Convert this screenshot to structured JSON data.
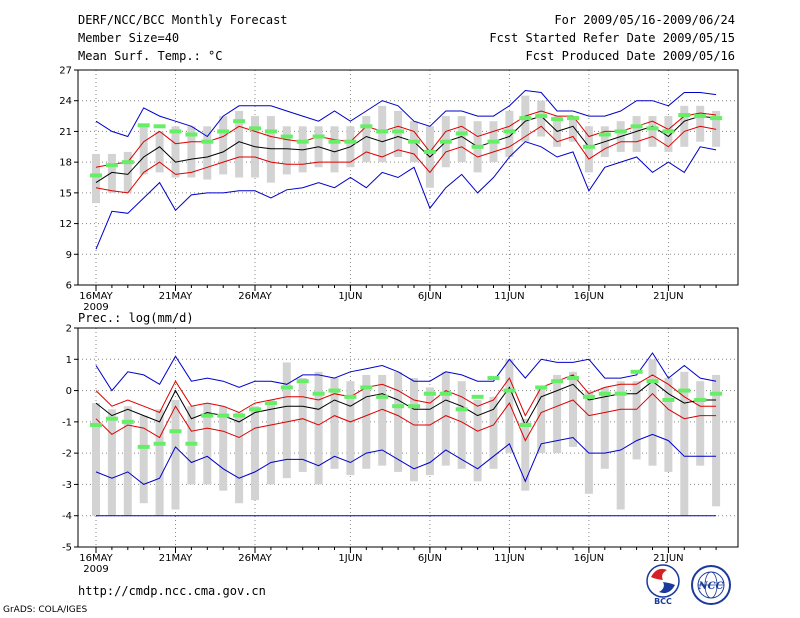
{
  "header": {
    "title": "DERF/NCC/BCC Monthly Forecast",
    "member_size": "Member Size=40",
    "variable": "Mean Surf. Temp.: °C",
    "period": "For 2009/05/16-2009/06/24",
    "started": "Fcst Started Refer Date 2009/05/15",
    "produced": "Fcst Produced Date 2009/05/16"
  },
  "footer": {
    "url": "http://cmdp.ncc.cma.gov.cn",
    "grads": "GrADS: COLA/IGES",
    "logo_bcc": "BCC",
    "logo_ncc": "NCC"
  },
  "colors": {
    "box": "#d3d3d3",
    "obs": "#66ee66",
    "mean": "#000000",
    "band": "#dd0000",
    "extreme": "#0000cc",
    "grid": "#888888"
  },
  "chart_data": [
    {
      "type": "line",
      "title": "Mean Surf. Temp.: °C",
      "ylim": [
        6,
        27
      ],
      "yticks": [
        6,
        9,
        12,
        15,
        18,
        21,
        24,
        27
      ],
      "xtick_labels": [
        "16MAY",
        "21MAY",
        "26MAY",
        "1JUN",
        "6JUN",
        "11JUN",
        "16JUN",
        "21JUN"
      ],
      "xtick_days": [
        1,
        6,
        11,
        17,
        22,
        27,
        32,
        37
      ],
      "year_label": "2009",
      "days": [
        1,
        2,
        3,
        4,
        5,
        6,
        7,
        8,
        9,
        10,
        11,
        12,
        13,
        14,
        15,
        16,
        17,
        18,
        19,
        20,
        21,
        22,
        23,
        24,
        25,
        26,
        27,
        28,
        29,
        30,
        31,
        32,
        33,
        34,
        35,
        36,
        37,
        38,
        39,
        40
      ],
      "series": [
        {
          "name": "max",
          "role": "extreme",
          "values": [
            22.0,
            21.0,
            20.5,
            23.3,
            22.5,
            22.0,
            21.5,
            20.5,
            22.5,
            23.5,
            23.5,
            23.5,
            23.0,
            22.5,
            22.0,
            23.0,
            22.0,
            23.0,
            24.0,
            23.5,
            22.0,
            21.5,
            23.0,
            23.0,
            22.5,
            22.5,
            23.5,
            25.0,
            24.8,
            23.0,
            23.0,
            22.5,
            22.5,
            23.0,
            24.0,
            24.0,
            23.5,
            24.8,
            24.8,
            24.6
          ]
        },
        {
          "name": "upper",
          "role": "band",
          "values": [
            17.5,
            17.8,
            18.0,
            20.0,
            21.0,
            19.8,
            20.0,
            20.0,
            20.5,
            21.5,
            21.0,
            20.5,
            20.2,
            20.0,
            20.5,
            20.2,
            20.0,
            21.5,
            21.0,
            21.5,
            21.0,
            19.0,
            21.0,
            21.5,
            20.5,
            21.0,
            21.5,
            22.5,
            23.0,
            22.5,
            22.5,
            20.5,
            21.0,
            21.0,
            21.5,
            22.0,
            21.2,
            22.5,
            22.8,
            22.6
          ]
        },
        {
          "name": "ensemble mean",
          "role": "mean",
          "values": [
            16.0,
            17.0,
            16.8,
            18.5,
            19.5,
            18.0,
            18.3,
            18.5,
            19.0,
            20.0,
            19.5,
            19.3,
            19.3,
            19.2,
            19.5,
            19.0,
            19.5,
            20.5,
            20.0,
            20.5,
            20.0,
            18.5,
            20.0,
            20.5,
            19.5,
            20.0,
            20.5,
            22.0,
            22.5,
            21.0,
            21.5,
            19.5,
            20.0,
            20.5,
            21.0,
            21.5,
            20.5,
            22.0,
            22.5,
            22.3
          ]
        },
        {
          "name": "lower",
          "role": "band",
          "values": [
            15.5,
            15.2,
            15.0,
            17.0,
            18.0,
            16.8,
            17.0,
            17.5,
            18.0,
            18.5,
            18.5,
            18.0,
            17.8,
            17.8,
            18.0,
            18.0,
            18.0,
            19.0,
            18.5,
            19.2,
            18.8,
            17.0,
            19.0,
            19.5,
            18.5,
            19.0,
            19.5,
            20.5,
            21.5,
            20.0,
            20.5,
            18.3,
            19.3,
            20.0,
            20.0,
            20.5,
            19.5,
            21.0,
            21.5,
            21.2
          ]
        },
        {
          "name": "min",
          "role": "extreme",
          "values": [
            9.5,
            13.2,
            13.0,
            14.5,
            16.0,
            13.3,
            14.8,
            15.0,
            15.0,
            15.2,
            15.2,
            14.5,
            15.3,
            15.5,
            16.0,
            15.5,
            16.5,
            15.5,
            17.0,
            16.5,
            17.5,
            13.5,
            15.5,
            16.8,
            15.0,
            16.5,
            18.5,
            20.0,
            19.5,
            18.5,
            19.0,
            15.2,
            17.5,
            18.0,
            18.5,
            17.0,
            18.0,
            17.0,
            19.5,
            19.2
          ]
        },
        {
          "name": "observation",
          "role": "obs",
          "values": [
            16.7,
            17.7,
            18.0,
            21.6,
            21.5,
            21.0,
            20.7,
            20.0,
            21.0,
            22.0,
            21.3,
            21.0,
            20.5,
            20.0,
            20.5,
            20.0,
            20.0,
            21.5,
            21.0,
            21.0,
            20.0,
            19.0,
            20.0,
            20.8,
            19.5,
            20.0,
            21.0,
            22.3,
            22.5,
            22.2,
            22.3,
            19.5,
            20.7,
            21.0,
            21.5,
            21.3,
            21.0,
            22.6,
            22.5,
            22.3
          ]
        }
      ],
      "box_low": [
        14.0,
        15.0,
        15.0,
        16.8,
        17.0,
        16.5,
        16.5,
        16.3,
        16.8,
        16.5,
        16.5,
        16.0,
        16.8,
        17.0,
        17.5,
        17.0,
        17.5,
        18.0,
        18.0,
        18.5,
        18.0,
        15.5,
        17.5,
        18.0,
        17.0,
        18.0,
        18.5,
        20.0,
        20.5,
        19.5,
        20.0,
        17.0,
        18.5,
        19.0,
        19.0,
        19.5,
        19.0,
        19.5,
        20.0,
        19.5
      ],
      "box_high": [
        18.8,
        18.8,
        19.0,
        21.5,
        21.0,
        21.5,
        21.5,
        21.5,
        22.5,
        23.0,
        22.5,
        22.5,
        21.5,
        21.5,
        21.5,
        21.5,
        21.5,
        22.5,
        23.5,
        23.0,
        22.0,
        21.5,
        22.5,
        22.5,
        22.0,
        22.0,
        23.0,
        24.5,
        24.0,
        22.5,
        22.5,
        21.5,
        21.5,
        22.0,
        22.5,
        22.5,
        22.5,
        23.5,
        23.5,
        23.0
      ]
    },
    {
      "type": "line",
      "title": "Prec.: log(mm/d)",
      "ylim": [
        -5,
        2
      ],
      "yticks": [
        -5,
        -4,
        -3,
        -2,
        -1,
        0,
        1,
        2
      ],
      "xtick_labels": [
        "16MAY",
        "21MAY",
        "26MAY",
        "1JUN",
        "6JUN",
        "11JUN",
        "16JUN",
        "21JUN"
      ],
      "xtick_days": [
        1,
        6,
        11,
        17,
        22,
        27,
        32,
        37
      ],
      "year_label": "2009",
      "days": [
        1,
        2,
        3,
        4,
        5,
        6,
        7,
        8,
        9,
        10,
        11,
        12,
        13,
        14,
        15,
        16,
        17,
        18,
        19,
        20,
        21,
        22,
        23,
        24,
        25,
        26,
        27,
        28,
        29,
        30,
        31,
        32,
        33,
        34,
        35,
        36,
        37,
        38,
        39,
        40
      ],
      "series": [
        {
          "name": "max",
          "role": "extreme",
          "values": [
            0.8,
            0.0,
            0.6,
            0.5,
            0.2,
            1.1,
            0.3,
            0.4,
            0.3,
            0.1,
            0.3,
            0.3,
            0.2,
            0.5,
            0.5,
            0.4,
            0.6,
            0.7,
            0.8,
            0.6,
            0.3,
            0.3,
            0.6,
            0.5,
            0.3,
            0.3,
            1.0,
            0.4,
            1.0,
            0.9,
            0.9,
            1.0,
            0.4,
            0.4,
            0.5,
            1.2,
            0.4,
            0.8,
            0.4,
            0.3
          ]
        },
        {
          "name": "upper",
          "role": "band",
          "values": [
            0.0,
            -0.5,
            -0.3,
            -0.5,
            -0.7,
            0.3,
            -0.5,
            -0.4,
            -0.5,
            -0.7,
            -0.4,
            -0.3,
            -0.2,
            -0.2,
            -0.3,
            -0.1,
            -0.2,
            0.1,
            0.2,
            0.0,
            -0.3,
            -0.4,
            0.0,
            -0.2,
            -0.5,
            -0.3,
            0.4,
            -0.8,
            0.1,
            0.3,
            0.5,
            -0.1,
            0.1,
            0.2,
            0.2,
            0.5,
            0.2,
            -0.2,
            -0.5,
            -0.5
          ]
        },
        {
          "name": "ensemble mean",
          "role": "mean",
          "values": [
            -0.4,
            -0.8,
            -0.6,
            -0.8,
            -1.0,
            0.0,
            -0.9,
            -0.7,
            -0.8,
            -1.0,
            -0.7,
            -0.6,
            -0.5,
            -0.5,
            -0.6,
            -0.3,
            -0.5,
            -0.2,
            -0.1,
            -0.3,
            -0.6,
            -0.6,
            -0.3,
            -0.5,
            -0.8,
            -0.6,
            0.1,
            -1.1,
            -0.2,
            0.0,
            0.2,
            -0.3,
            -0.2,
            -0.1,
            -0.1,
            0.3,
            -0.1,
            -0.4,
            -0.3,
            -0.3
          ]
        },
        {
          "name": "lower",
          "role": "band",
          "values": [
            -0.9,
            -1.4,
            -1.1,
            -1.2,
            -1.5,
            -0.5,
            -1.3,
            -1.2,
            -1.3,
            -1.5,
            -1.2,
            -1.1,
            -1.0,
            -0.9,
            -1.1,
            -0.8,
            -1.0,
            -0.8,
            -0.6,
            -0.8,
            -1.1,
            -1.1,
            -0.8,
            -1.0,
            -1.3,
            -1.1,
            -0.4,
            -1.6,
            -0.7,
            -0.5,
            -0.3,
            -0.8,
            -0.7,
            -0.6,
            -0.6,
            -0.1,
            -0.6,
            -0.9,
            -0.8,
            -0.8
          ]
        },
        {
          "name": "min",
          "role": "extreme",
          "values": [
            -2.6,
            -2.8,
            -2.6,
            -3.0,
            -2.8,
            -1.8,
            -2.3,
            -2.1,
            -2.5,
            -2.8,
            -2.6,
            -2.3,
            -2.2,
            -2.2,
            -2.4,
            -2.1,
            -2.3,
            -2.0,
            -1.9,
            -2.2,
            -2.5,
            -2.3,
            -1.9,
            -2.2,
            -2.5,
            -2.1,
            -1.7,
            -2.9,
            -1.7,
            -1.6,
            -1.5,
            -2.0,
            -2.0,
            -1.9,
            -1.6,
            -1.4,
            -1.6,
            -2.1,
            -2.1,
            -2.1
          ]
        },
        {
          "name": "observation",
          "role": "obs",
          "values": [
            -1.1,
            -0.9,
            -1.0,
            -1.8,
            -1.7,
            -1.3,
            -1.7,
            -0.8,
            -0.8,
            -0.8,
            -0.6,
            -0.4,
            0.1,
            0.3,
            -0.1,
            0.0,
            -0.2,
            0.1,
            -0.2,
            -0.5,
            -0.5,
            -0.1,
            -0.1,
            -0.6,
            -0.2,
            0.4,
            0.0,
            -1.1,
            0.1,
            0.3,
            0.4,
            -0.2,
            -0.1,
            -0.1,
            0.6,
            0.3,
            -0.3,
            0.0,
            -0.3,
            -0.1
          ]
        }
      ],
      "box_low": [
        -4.0,
        -4.0,
        -4.0,
        -3.6,
        -4.0,
        -3.8,
        -3.0,
        -3.0,
        -3.2,
        -3.6,
        -3.5,
        -3.0,
        -2.8,
        -2.6,
        -3.0,
        -2.5,
        -2.7,
        -2.5,
        -2.4,
        -2.6,
        -2.9,
        -2.7,
        -2.4,
        -2.5,
        -2.9,
        -2.5,
        -2.0,
        -3.2,
        -2.0,
        -2.0,
        -1.8,
        -3.3,
        -2.5,
        -3.8,
        -2.2,
        -2.4,
        -2.6,
        -4.0,
        -2.4,
        -3.7
      ],
      "box_high": [
        -0.4,
        -0.6,
        -0.5,
        -0.8,
        -0.6,
        -0.3,
        -0.5,
        -0.4,
        -0.5,
        -0.7,
        -0.5,
        -0.3,
        0.9,
        0.4,
        0.6,
        0.4,
        0.3,
        0.5,
        0.5,
        0.6,
        0.4,
        0.1,
        0.6,
        0.3,
        -0.3,
        -0.2,
        1.0,
        -0.9,
        0.1,
        0.5,
        0.6,
        0.0,
        0.1,
        0.3,
        0.3,
        1.0,
        0.4,
        0.6,
        0.3,
        0.5
      ]
    }
  ]
}
